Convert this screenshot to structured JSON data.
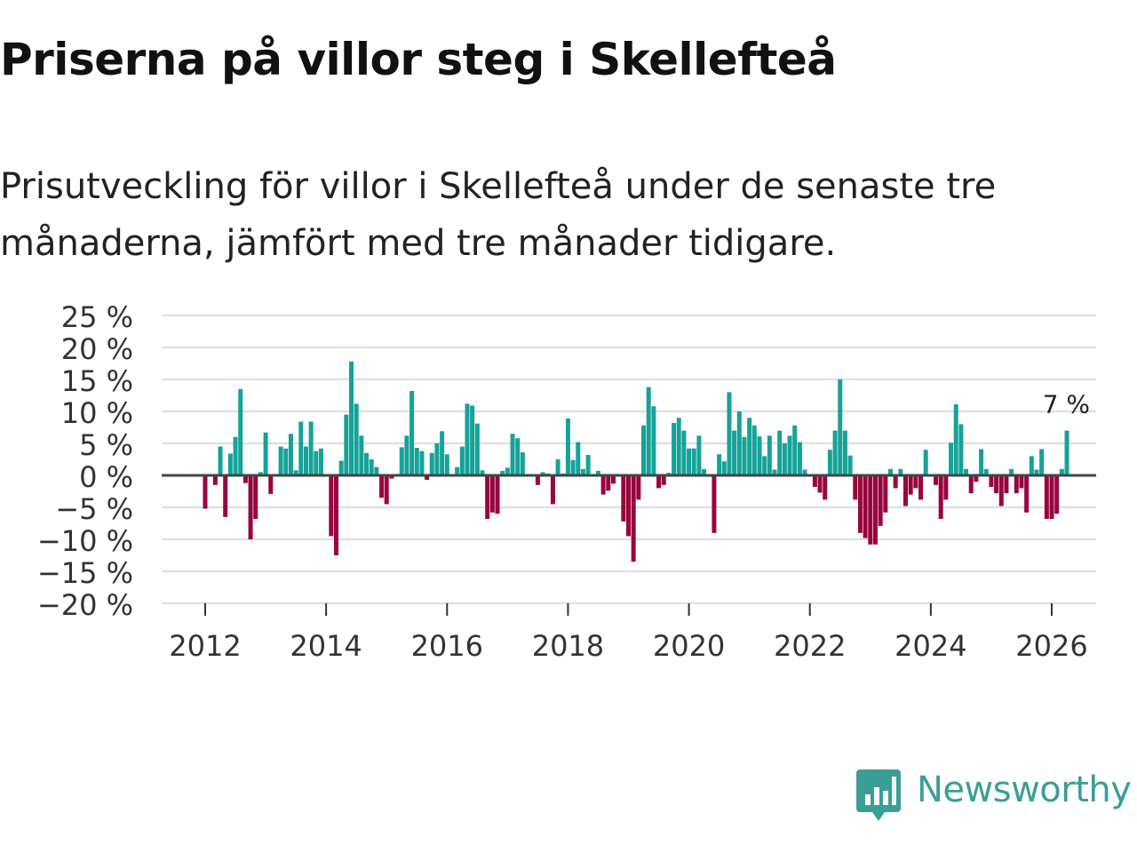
{
  "header": {
    "title": "Priserna på villor steg i Skellefteå",
    "subtitle": "Prisutveckling för villor i Skellefteå under de senaste tre månaderna, jämfört med tre månader tidigare."
  },
  "brand": {
    "name": "Newsworthy",
    "icon": "newsworthy-logo-icon",
    "color": "#3a9e95"
  },
  "colors": {
    "positive": "#15a398",
    "negative": "#99043f",
    "grid": "#dddddd",
    "zero": "#444444"
  },
  "chart_data": {
    "type": "bar",
    "title": "Priserna på villor steg i Skellefteå",
    "xlabel": "",
    "ylabel": "",
    "ylim": [
      -20,
      25
    ],
    "yticks": [
      25,
      20,
      15,
      10,
      5,
      0,
      -5,
      -10,
      -15,
      -20
    ],
    "ytick_labels": [
      "25 %",
      "20 %",
      "15 %",
      "10 %",
      "5 %",
      "0 %",
      "−5 %",
      "−10 %",
      "−15 %",
      "−20 %"
    ],
    "xticks": [
      2012,
      2014,
      2016,
      2018,
      2020,
      2022,
      2024,
      2026
    ],
    "xtick_labels": [
      "2012",
      "2014",
      "2016",
      "2018",
      "2020",
      "2022",
      "2024",
      "2026"
    ],
    "start": {
      "year": 2012,
      "month": 1
    },
    "annotation": {
      "text": "7 %",
      "target": "last"
    },
    "series": [
      {
        "name": "Prisutveckling",
        "frequency": "monthly",
        "values": [
          -5.2,
          0,
          -1.5,
          4.5,
          -6.5,
          3.4,
          6.0,
          13.5,
          -1.2,
          -10.0,
          -6.8,
          0.5,
          6.7,
          -2.9,
          0,
          4.5,
          4.2,
          6.5,
          0.8,
          8.4,
          4.5,
          8.4,
          3.8,
          4.2,
          0,
          -9.5,
          -12.5,
          2.3,
          9.5,
          17.8,
          11.2,
          6.2,
          3.5,
          2.5,
          1.3,
          -3.5,
          -4.5,
          -0.5,
          -0.2,
          4.4,
          6.2,
          13.2,
          4.3,
          3.8,
          -0.7,
          3.5,
          5.0,
          6.9,
          3.3,
          0.1,
          1.3,
          4.5,
          11.2,
          10.9,
          8.1,
          0.8,
          -6.8,
          -5.8,
          -6.0,
          0.7,
          1.2,
          6.5,
          5.8,
          3.6,
          0.2,
          0.1,
          -1.5,
          0.5,
          0.3,
          -4.5,
          2.5,
          0.3,
          8.9,
          2.4,
          5.2,
          1.0,
          3.2,
          0.2,
          0.7,
          -3.0,
          -2.4,
          -1.3,
          0.2,
          -7.2,
          -9.5,
          -13.5,
          -3.8,
          7.8,
          13.8,
          10.8,
          -2.0,
          -1.5,
          0.4,
          8.2,
          9.0,
          7.0,
          4.2,
          4.2,
          6.2,
          1.0,
          0,
          -9.0,
          3.3,
          2.2,
          13.0,
          7.0,
          10.0,
          6.0,
          9.0,
          7.8,
          6.1,
          3.0,
          6.2,
          0.9,
          7.0,
          5.0,
          6.2,
          7.8,
          5.2,
          0.9,
          0,
          -1.8,
          -2.7,
          -3.8,
          4.0,
          7.0,
          15.0,
          7.0,
          3.1,
          -3.8,
          -9.0,
          -9.8,
          -10.8,
          -10.8,
          -7.9,
          -5.8,
          1.0,
          -2.0,
          1.0,
          -4.8,
          -3.0,
          -2.0,
          -3.8,
          4.0,
          0,
          -1.5,
          -6.8,
          -3.8,
          5.1,
          11.1,
          8.0,
          1.0,
          -2.8,
          -1.0,
          4.1,
          1.0,
          -1.8,
          -2.8,
          -4.8,
          -2.8,
          1.0,
          -2.8,
          -2.0,
          -5.8,
          3.0,
          0.9,
          4.1,
          -6.8,
          -6.8,
          -6.0,
          1.0,
          7.0
        ]
      }
    ]
  }
}
